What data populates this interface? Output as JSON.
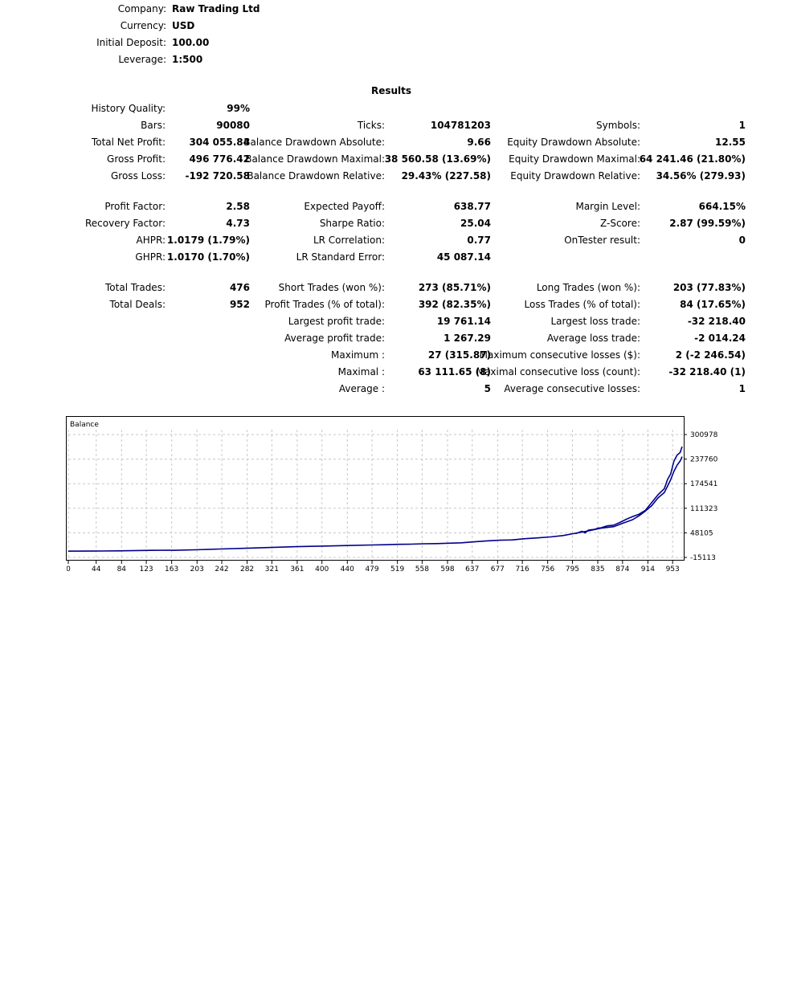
{
  "header": [
    {
      "label": "Company:",
      "value": "Raw Trading Ltd"
    },
    {
      "label": "Currency:",
      "value": "USD"
    },
    {
      "label": "Initial Deposit:",
      "value": "100.00"
    },
    {
      "label": "Leverage:",
      "value": "1:500"
    }
  ],
  "results_title": "Results",
  "col1": [
    {
      "label": "History Quality:",
      "value": "99%"
    },
    {
      "label": "Bars:",
      "value": "90080"
    },
    {
      "label": "Total Net Profit:",
      "value": "304 055.84"
    },
    {
      "label": "Gross Profit:",
      "value": "496 776.42"
    },
    {
      "label": "Gross Loss:",
      "value": "-192 720.58"
    },
    {
      "label": "Profit Factor:",
      "value": "2.58"
    },
    {
      "label": "Recovery Factor:",
      "value": "4.73"
    },
    {
      "label": "AHPR:",
      "value": "1.0179 (1.79%)"
    },
    {
      "label": "GHPR:",
      "value": "1.0170 (1.70%)"
    },
    {
      "label": "Total Trades:",
      "value": "476"
    },
    {
      "label": "Total Deals:",
      "value": "952"
    }
  ],
  "col2": [
    {
      "label": "Ticks:",
      "value": "104781203"
    },
    {
      "label": "Balance Drawdown Absolute:",
      "value": "9.66"
    },
    {
      "label": "Balance Drawdown Maximal:",
      "value": "38 560.58 (13.69%)"
    },
    {
      "label": "Balance Drawdown Relative:",
      "value": "29.43% (227.58)"
    },
    {
      "label": "Expected Payoff:",
      "value": "638.77"
    },
    {
      "label": "Sharpe Ratio:",
      "value": "25.04"
    },
    {
      "label": "LR Correlation:",
      "value": "0.77"
    },
    {
      "label": "LR Standard Error:",
      "value": "45 087.14"
    },
    {
      "label": "Short Trades (won %):",
      "value": "273 (85.71%)"
    },
    {
      "label": "Profit Trades (% of total):",
      "value": "392 (82.35%)"
    },
    {
      "label": "Largest profit trade:",
      "value": "19 761.14"
    },
    {
      "label": "Average profit trade:",
      "value": "1 267.29"
    },
    {
      "label": "Maximum :",
      "value": "27 (315.87)"
    },
    {
      "label": "Maximal :",
      "value": "63 111.65 (8)"
    },
    {
      "label": "Average :",
      "value": "5"
    }
  ],
  "col3": [
    {
      "label": "Symbols:",
      "value": "1"
    },
    {
      "label": "Equity Drawdown Absolute:",
      "value": "12.55"
    },
    {
      "label": "Equity Drawdown Maximal:",
      "value": "64 241.46 (21.80%)"
    },
    {
      "label": "Equity Drawdown Relative:",
      "value": "34.56% (279.93)"
    },
    {
      "label": "Margin Level:",
      "value": "664.15%"
    },
    {
      "label": "Z-Score:",
      "value": "2.87 (99.59%)"
    },
    {
      "label": "OnTester result:",
      "value": "0"
    },
    {
      "label": "Long Trades (won %):",
      "value": "203 (77.83%)"
    },
    {
      "label": "Loss Trades (% of total):",
      "value": "84 (17.65%)"
    },
    {
      "label": "Largest loss trade:",
      "value": "-32 218.40"
    },
    {
      "label": "Average loss trade:",
      "value": "-2 014.24"
    },
    {
      "label": "Maximum consecutive losses ($):",
      "value": "2 (-2 246.54)"
    },
    {
      "label": "Maximal consecutive loss (count):",
      "value": "-32 218.40 (1)"
    },
    {
      "label": "Average consecutive losses:",
      "value": "1"
    }
  ],
  "chart_data": {
    "type": "line",
    "title": "Balance",
    "xlabel": "",
    "ylabel": "",
    "x_ticks": [
      0,
      44,
      84,
      123,
      163,
      203,
      242,
      282,
      321,
      361,
      400,
      440,
      479,
      519,
      558,
      598,
      637,
      677,
      716,
      756,
      795,
      835,
      874,
      914,
      953
    ],
    "y_ticks": [
      300978,
      237760,
      174541,
      111323,
      48105,
      -15113
    ],
    "xlim": [
      0,
      968
    ],
    "ylim": [
      -15113,
      300978
    ],
    "grid": true,
    "series": [
      {
        "color": "#00008b",
        "x": [
          0,
          40,
          80,
          100,
          130,
          160,
          165,
          200,
          240,
          280,
          320,
          360,
          400,
          440,
          480,
          500,
          520,
          540,
          560,
          580,
          600,
          620,
          640,
          660,
          680,
          700,
          720,
          740,
          760,
          780,
          800,
          820,
          840,
          860,
          870,
          880,
          890,
          900,
          910,
          920,
          930,
          940,
          945,
          950,
          955,
          960,
          965,
          968
        ],
        "y": [
          1000,
          1200,
          1800,
          2200,
          3000,
          3500,
          3000,
          4500,
          6500,
          8500,
          10500,
          12500,
          14000,
          15500,
          17000,
          17500,
          18500,
          19000,
          20000,
          20500,
          21500,
          22500,
          25000,
          27500,
          29000,
          30000,
          33000,
          35000,
          37500,
          41000,
          47000,
          53000,
          60000,
          64000,
          70000,
          76000,
          82000,
          92000,
          104000,
          118000,
          138000,
          152000,
          168000,
          185000,
          206000,
          222000,
          233000,
          244000
        ]
      },
      {
        "color": "#00008b",
        "x": [
          800,
          810,
          815,
          820,
          830,
          835,
          840,
          850,
          860,
          870,
          880,
          890,
          900,
          910,
          920,
          930,
          940,
          945,
          950,
          955,
          960,
          965,
          968
        ],
        "y": [
          46000,
          52000,
          48000,
          55000,
          57000,
          60000,
          61000,
          66000,
          68000,
          75000,
          83000,
          90000,
          96000,
          106000,
          126000,
          146000,
          162000,
          185000,
          200000,
          232000,
          248000,
          255000,
          270000
        ]
      }
    ]
  }
}
